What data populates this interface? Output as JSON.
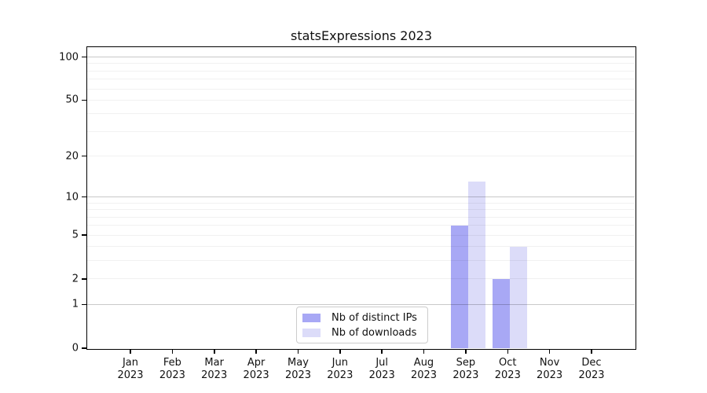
{
  "title": "statsExpressions 2023",
  "chart_data": {
    "type": "bar",
    "title": "statsExpressions 2023",
    "categories": [
      "Jan",
      "Feb",
      "Mar",
      "Apr",
      "May",
      "Jun",
      "Jul",
      "Aug",
      "Sep",
      "Oct",
      "Nov",
      "Dec"
    ],
    "year": "2023",
    "series": [
      {
        "name": "Nb of distinct IPs",
        "color": "#a8a8f5",
        "values": [
          0,
          0,
          0,
          0,
          0,
          0,
          0,
          0,
          6,
          2,
          0,
          0
        ]
      },
      {
        "name": "Nb of downloads",
        "color": "#dcdcf9",
        "values": [
          0,
          0,
          0,
          0,
          0,
          0,
          0,
          0,
          13,
          4,
          0,
          0
        ]
      }
    ],
    "xlabel": "",
    "ylabel": "",
    "yscale": "log1p",
    "ylim": [
      0,
      117
    ],
    "ytick_labels": [
      0,
      1,
      2,
      5,
      10,
      20,
      50,
      100
    ],
    "gridline_values": [
      1,
      2,
      3,
      4,
      5,
      6,
      7,
      8,
      9,
      10,
      20,
      30,
      40,
      50,
      60,
      70,
      80,
      90,
      100
    ],
    "major_gridline_values": [
      1,
      10,
      100
    ],
    "grid": true,
    "legend_position": "inside-bottom-center"
  },
  "colors": {
    "background": "#ffffff",
    "axis": "#000000",
    "bar_distinct_ips": "#a8a8f5",
    "bar_downloads": "#dcdcf9",
    "grid_major": "#c9c9c9",
    "grid_minor": "#f1f1f1"
  }
}
